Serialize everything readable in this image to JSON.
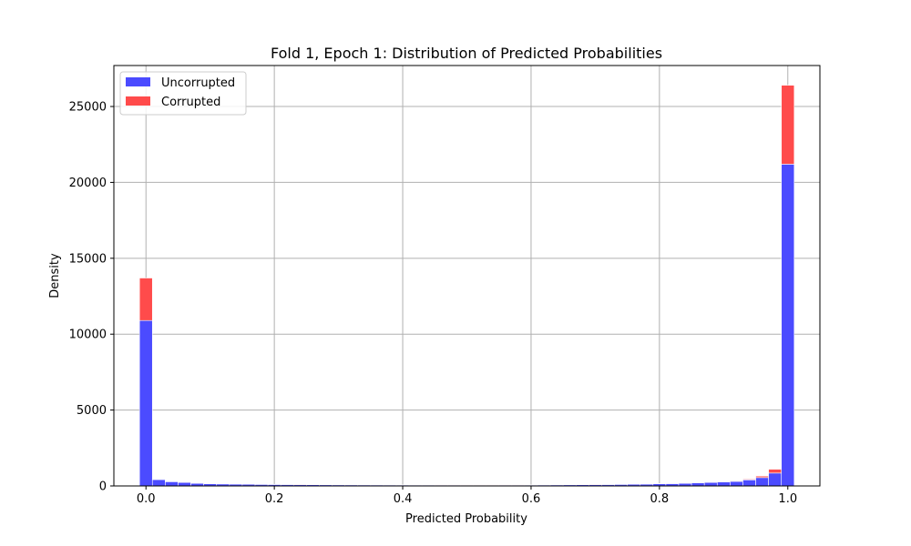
{
  "chart_data": {
    "type": "bar",
    "stacked": true,
    "title": "Fold 1, Epoch 1: Distribution of Predicted Probabilities",
    "xlabel": "Predicted Probability",
    "ylabel": "Density",
    "xlim": [
      -0.05,
      1.05
    ],
    "ylim": [
      0,
      27700
    ],
    "xticks": [
      0.0,
      0.2,
      0.4,
      0.6,
      0.8,
      1.0
    ],
    "xtick_labels": [
      "0.0",
      "0.2",
      "0.4",
      "0.6",
      "0.8",
      "1.0"
    ],
    "yticks": [
      0,
      5000,
      10000,
      15000,
      20000,
      25000
    ],
    "ytick_labels": [
      "0",
      "5000",
      "10000",
      "15000",
      "20000",
      "25000"
    ],
    "grid": true,
    "legend": "top-left",
    "bin_start": 0.0,
    "bin_width": 0.02,
    "series": [
      {
        "name": "Uncorrupted",
        "color": "#4b4bff",
        "values": [
          10900,
          420,
          280,
          230,
          170,
          140,
          130,
          120,
          110,
          100,
          95,
          90,
          85,
          80,
          75,
          72,
          70,
          68,
          66,
          64,
          62,
          60,
          60,
          58,
          58,
          56,
          56,
          56,
          58,
          58,
          60,
          65,
          70,
          75,
          80,
          85,
          90,
          100,
          110,
          120,
          140,
          150,
          170,
          200,
          230,
          260,
          300,
          400,
          550,
          850,
          21200
        ]
      },
      {
        "name": "Corrupted",
        "color": "#ff4b4b",
        "values": [
          2800,
          20,
          15,
          15,
          10,
          10,
          10,
          10,
          10,
          10,
          10,
          10,
          10,
          10,
          10,
          10,
          10,
          10,
          10,
          10,
          10,
          10,
          10,
          10,
          10,
          10,
          10,
          10,
          10,
          10,
          10,
          10,
          10,
          10,
          10,
          10,
          10,
          10,
          10,
          15,
          20,
          20,
          25,
          25,
          30,
          35,
          40,
          50,
          100,
          250,
          5200
        ]
      }
    ]
  }
}
